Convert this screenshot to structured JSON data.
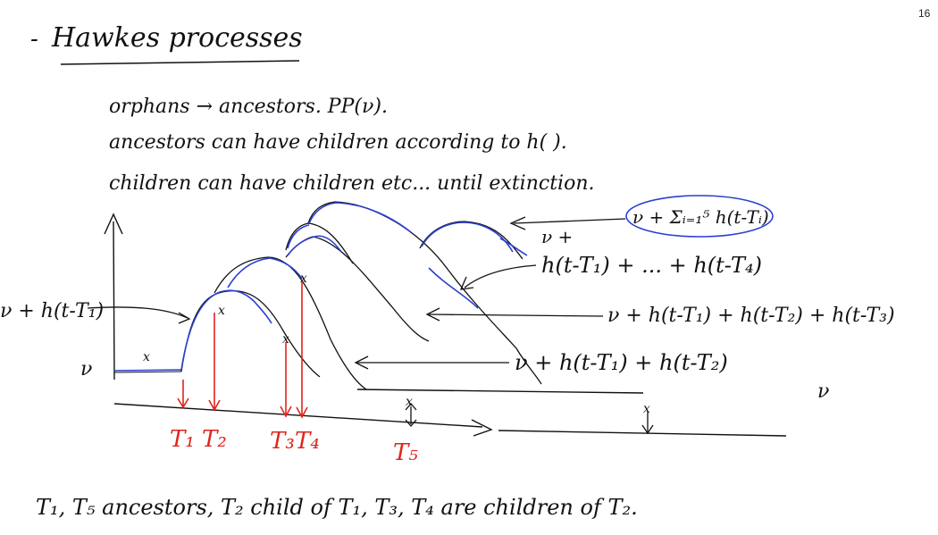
{
  "page_number": "16",
  "title": "Hawkes processes",
  "bullets": [
    "orphans → ancestors. PP(ν).",
    "ancestors can have children according to h( ).",
    "children can have children etc... until extinction."
  ],
  "labels": {
    "left_label": "ν + h(t-T₁)",
    "nu_left": "ν",
    "nu_right": "ν",
    "label_sum": "ν + Σᵢ₌₁⁵ h(t-Tᵢ)",
    "nu_plus": "ν +",
    "label_4": "h(t-T₁) + ... + h(t-T₄)",
    "label_3": "ν + h(t-T₁) + h(t-T₂) + h(t-T₃)",
    "label_2": "ν + h(t-T₁) + h(t-T₂)",
    "t1": "T₁",
    "t2": "T₂",
    "t3": "T₃",
    "t4": "T₄",
    "t5": "T₅"
  },
  "footer": "T₁, T₅ ancestors, T₂ child of T₁, T₃, T₄ are children of T₂.",
  "colors": {
    "ink": "#111111",
    "red": "#e0241b",
    "blue": "#2b3fd0"
  }
}
